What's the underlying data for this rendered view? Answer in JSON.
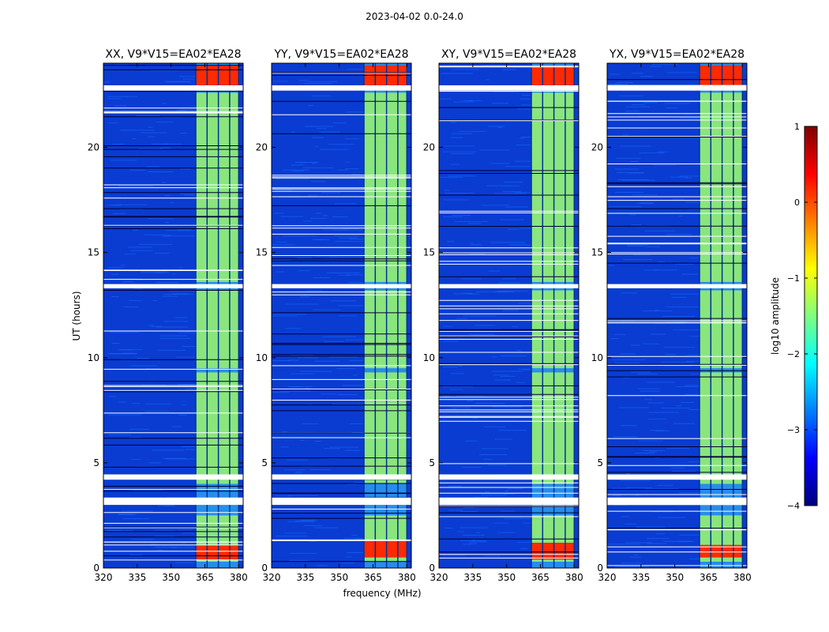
{
  "figure_title": "2023-04-02 0.0-24.0",
  "chart_data": {
    "type": "heatmap",
    "title": "2023-04-02 0.0-24.0",
    "xlabel": "frequency (MHz)",
    "ylabel": "UT (hours)",
    "xlim": [
      320,
      382
    ],
    "ylim": [
      0,
      24
    ],
    "xticks": [
      320,
      335,
      350,
      365,
      380
    ],
    "yticks": [
      0,
      5,
      10,
      15,
      20
    ],
    "panels": [
      {
        "title": "XX, V9*V15=EA02*EA28",
        "low_strong": [
          0.4,
          1.1
        ],
        "high_strong": [
          22.8,
          23.9
        ]
      },
      {
        "title": "YY, V9*V15=EA02*EA28",
        "low_strong": [
          0.5,
          1.3
        ],
        "high_strong": [
          22.8,
          23.9
        ]
      },
      {
        "title": "XY, V9*V15=EA02*EA28",
        "low_strong": [
          0.4,
          1.2
        ],
        "high_strong": [
          22.8,
          23.9
        ]
      },
      {
        "title": "YX, V9*V15=EA02*EA28",
        "low_strong": [
          0.5,
          1.1
        ],
        "high_strong": [
          22.8,
          23.9
        ]
      }
    ],
    "rfi_band_mhz": [
      361,
      380
    ],
    "rfi_channels_mhz": [
      361,
      366,
      371,
      376,
      380
    ],
    "flagged_ut_ranges": [
      [
        3.0,
        3.35
      ],
      [
        4.2,
        4.45
      ],
      [
        13.3,
        13.5
      ],
      [
        22.7,
        22.95
      ]
    ],
    "colorbar": {
      "label": "log10 amplitude",
      "ticks": [
        1,
        0,
        -1,
        -2,
        -3,
        -4
      ],
      "tick_labels": [
        "1",
        "0",
        "−1",
        "−2",
        "−3",
        "−4"
      ],
      "range": [
        -4,
        1
      ],
      "colormap": "jet",
      "stops": [
        "#00007f",
        "#0000ff",
        "#007fff",
        "#00ffff",
        "#7fff7f",
        "#ffff00",
        "#ff7f00",
        "#ff0000",
        "#7f0000"
      ]
    },
    "colors": {
      "background": "#0a3cd2",
      "noise": "#1a6bff",
      "band_mid": "#9cf56a",
      "band_hot": "#ff2a00",
      "flag": "#ffffff"
    }
  }
}
